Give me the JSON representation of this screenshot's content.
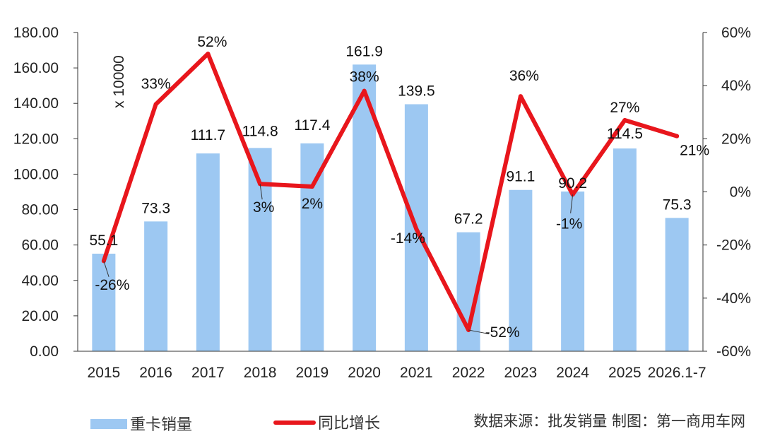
{
  "chart_data": {
    "type": "bar",
    "categories": [
      "2015",
      "2016",
      "2017",
      "2018",
      "2019",
      "2020",
      "2021",
      "2022",
      "2023",
      "2024",
      "2025",
      "2026.1-7"
    ],
    "series": [
      {
        "name": "重卡销量",
        "type": "bar",
        "axis": "left",
        "color": "#9dc8f2",
        "values": [
          55.1,
          73.3,
          111.7,
          114.8,
          117.4,
          161.9,
          139.5,
          67.2,
          91.1,
          90.2,
          114.5,
          75.3
        ],
        "labels": [
          "55.1",
          "73.3",
          "111.7",
          "114.8",
          "117.4",
          "161.9",
          "139.5",
          "67.2",
          "91.1",
          "90.2",
          "114.5",
          "75.3"
        ]
      },
      {
        "name": "同比增长",
        "type": "line",
        "axis": "right",
        "color": "#e8161c",
        "values": [
          -26,
          33,
          52,
          3,
          2,
          38,
          -14,
          -52,
          36,
          -1,
          27,
          21
        ],
        "labels": [
          "-26%",
          "33%",
          "52%",
          "3%",
          "2%",
          "38%",
          "-14%",
          "-52%",
          "36%",
          "-1%",
          "27%",
          "21%"
        ]
      }
    ],
    "y_left": {
      "min": 0,
      "max": 180,
      "step": 20,
      "tick_labels": [
        "0.00",
        "20.00",
        "40.00",
        "60.00",
        "80.00",
        "100.00",
        "120.00",
        "140.00",
        "160.00",
        "180.00"
      ],
      "unit_label": "x 10000"
    },
    "y_right": {
      "min": -60,
      "max": 60,
      "step": 20,
      "tick_labels": [
        "-60%",
        "-40%",
        "-20%",
        "0%",
        "20%",
        "40%",
        "60%"
      ]
    },
    "grid": false,
    "legend_position": "bottom-left",
    "source_note": "数据来源：批发销量  制图：第一商用车网"
  }
}
